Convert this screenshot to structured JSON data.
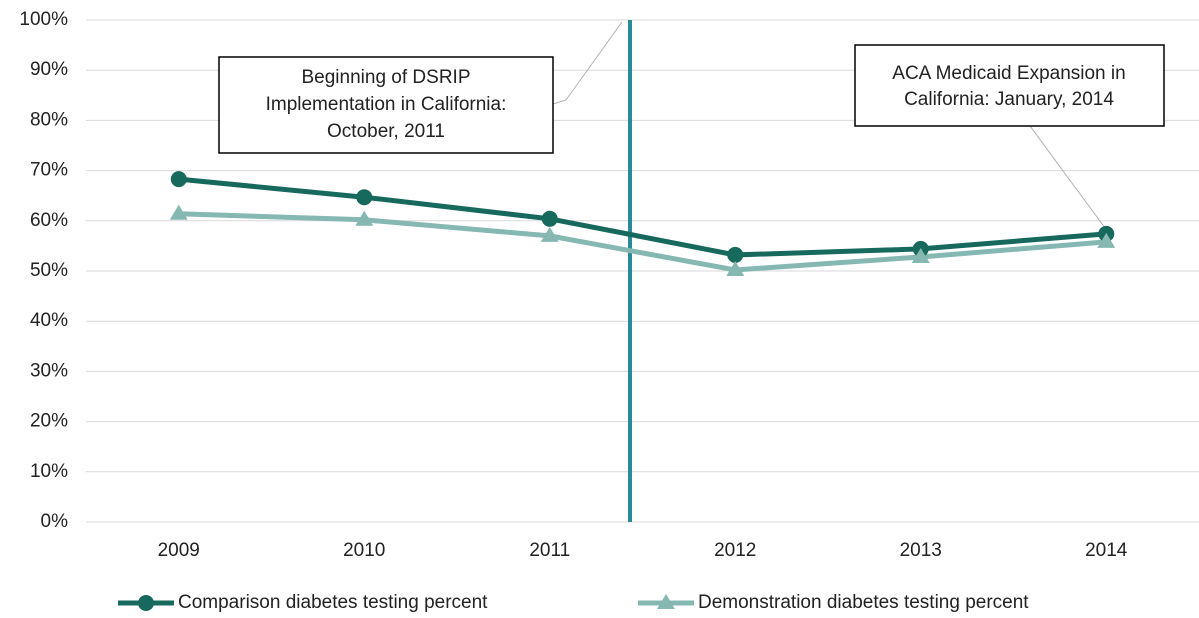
{
  "chart_data": {
    "type": "line",
    "categories": [
      "2009",
      "2010",
      "2011",
      "2012",
      "2013",
      "2014"
    ],
    "series": [
      {
        "name": "Comparison diabetes testing percent",
        "color": "#17695d",
        "marker": "circle",
        "values": [
          68.3,
          64.7,
          60.4,
          53.2,
          54.4,
          57.4
        ]
      },
      {
        "name": "Demonstration diabetes testing percent",
        "color": "#86b8b2",
        "marker": "triangle",
        "values": [
          61.4,
          60.2,
          57.0,
          50.2,
          52.8,
          55.8
        ]
      }
    ],
    "ylim": [
      0,
      100
    ],
    "yticks": [
      {
        "value": 0,
        "label": "0%"
      },
      {
        "value": 10,
        "label": "10%"
      },
      {
        "value": 20,
        "label": "20%"
      },
      {
        "value": 30,
        "label": "30%"
      },
      {
        "value": 40,
        "label": "40%"
      },
      {
        "value": 50,
        "label": "50%"
      },
      {
        "value": 60,
        "label": "60%"
      },
      {
        "value": 70,
        "label": "70%"
      },
      {
        "value": 80,
        "label": "80%"
      },
      {
        "value": 90,
        "label": "90%"
      },
      {
        "value": 100,
        "label": "100%"
      }
    ],
    "grid": true,
    "legend": "bottom",
    "annotations": [
      {
        "lines": [
          "Beginning of DSRIP",
          "Implementation in California:",
          "October, 2011"
        ]
      },
      {
        "lines": [
          "ACA Medicaid Expansion in",
          "California: January, 2014"
        ]
      }
    ]
  }
}
